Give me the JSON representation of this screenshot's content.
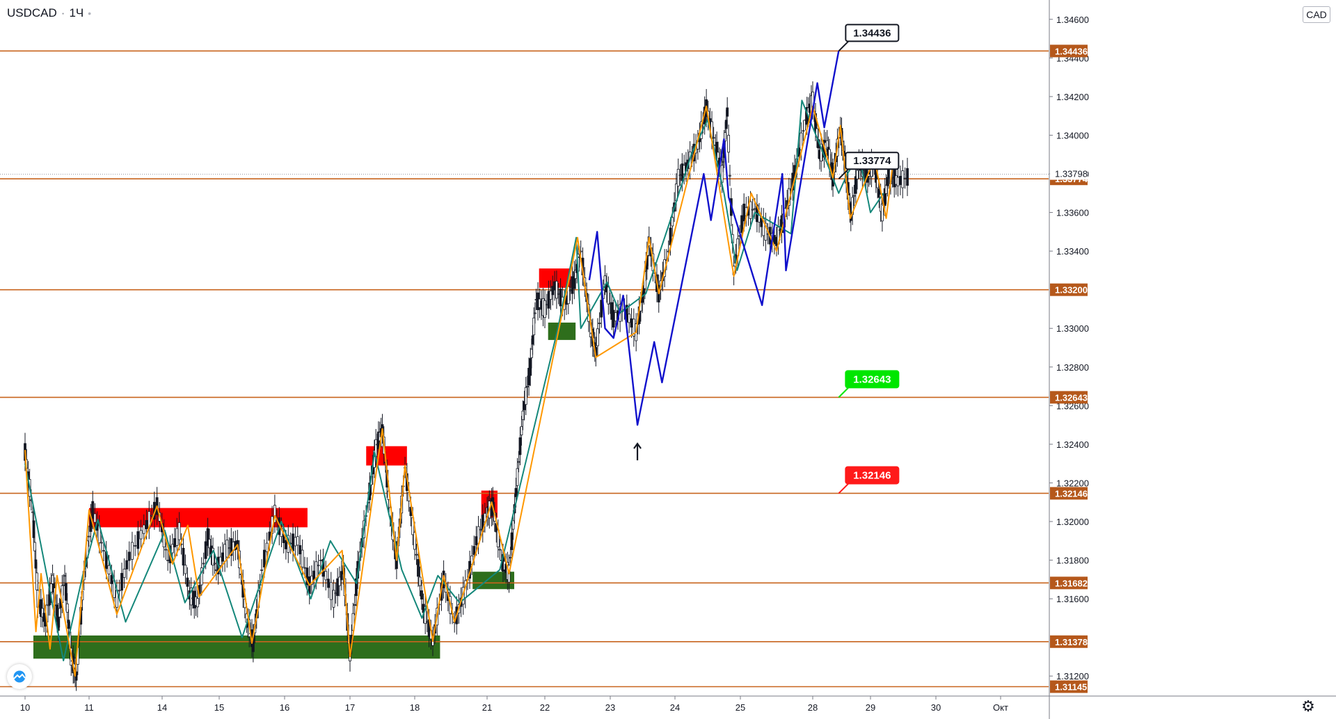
{
  "header": {
    "symbol": "USDCAD",
    "separator": "·",
    "interval": "1Ч",
    "status_dot": "•"
  },
  "price_axis": {
    "currency": "CAD"
  },
  "icons": {
    "logo": "tradingview-logo-icon",
    "settings": "gear-icon"
  },
  "colors": {
    "level_line": "#c8641e",
    "level_label_bg": "#b5581b",
    "resistance_zone": "#ff0000",
    "support_zone": "#2e6e1c",
    "zigzag_orange": "#ff9800",
    "zigzag_teal": "#14877a",
    "forecast": "#1111cc",
    "label_green": "#00e600",
    "label_red": "#ff1a1a",
    "candle": "#131722"
  },
  "chart_data": {
    "type": "candlestick",
    "instrument": "USDCAD",
    "interval": "1Ч",
    "ylim": [
      1.311,
      1.347
    ],
    "y_ticks": [
      {
        "value": 1.346,
        "label": "1.34600"
      },
      {
        "value": 1.344,
        "label": "1.34400"
      },
      {
        "value": 1.342,
        "label": "1.34200"
      },
      {
        "value": 1.34,
        "label": "1.34000"
      },
      {
        "value": 1.338,
        "label": "1.33800"
      },
      {
        "value": 1.336,
        "label": "1.33600"
      },
      {
        "value": 1.334,
        "label": "1.33400"
      },
      {
        "value": 1.33,
        "label": "1.33000"
      },
      {
        "value": 1.328,
        "label": "1.32800"
      },
      {
        "value": 1.326,
        "label": "1.32600"
      },
      {
        "value": 1.324,
        "label": "1.32400"
      },
      {
        "value": 1.322,
        "label": "1.32200"
      },
      {
        "value": 1.32,
        "label": "1.32000"
      },
      {
        "value": 1.318,
        "label": "1.31800"
      },
      {
        "value": 1.316,
        "label": "1.31600"
      },
      {
        "value": 1.312,
        "label": "1.31200"
      }
    ],
    "x_ticks": [
      {
        "day": 0,
        "label": "10"
      },
      {
        "day": 1,
        "label": "11"
      },
      {
        "day": 2,
        "label": "14"
      },
      {
        "day": 3,
        "label": "15"
      },
      {
        "day": 4,
        "label": "16"
      },
      {
        "day": 5,
        "label": "17"
      },
      {
        "day": 6,
        "label": "18"
      },
      {
        "day": 7,
        "label": "21"
      },
      {
        "day": 8,
        "label": "22"
      },
      {
        "day": 9,
        "label": "23"
      },
      {
        "day": 10,
        "label": "24"
      },
      {
        "day": 11,
        "label": "25"
      },
      {
        "day": 12,
        "label": "28"
      },
      {
        "day": 13,
        "label": "29"
      },
      {
        "day": 14,
        "label": "30"
      },
      {
        "day": 15,
        "label": "Окт"
      }
    ],
    "levels": [
      {
        "value": 1.34436,
        "label": "1.34436"
      },
      {
        "value": 1.33774,
        "label": "1.33774"
      },
      {
        "value": 1.332,
        "label": "1.33200"
      },
      {
        "value": 1.32643,
        "label": "1.32643"
      },
      {
        "value": 1.32146,
        "label": "1.32146"
      },
      {
        "value": 1.31682,
        "label": "1.31682"
      },
      {
        "value": 1.31378,
        "label": "1.31378"
      },
      {
        "value": 1.31145,
        "label": "1.31145"
      }
    ],
    "last_price": {
      "value": 1.33798,
      "label": "1.33798"
    },
    "zones": [
      {
        "kind": "resistance",
        "day_from": 1.0,
        "day_to": 4.35,
        "low": 1.3197,
        "high": 1.3207
      },
      {
        "kind": "resistance",
        "day_from": 5.25,
        "day_to": 5.88,
        "low": 1.3229,
        "high": 1.3239
      },
      {
        "kind": "resistance",
        "day_from": 6.92,
        "day_to": 7.18,
        "low": 1.3202,
        "high": 1.3216
      },
      {
        "kind": "resistance",
        "day_from": 7.9,
        "day_to": 8.4,
        "low": 1.3321,
        "high": 1.3331
      },
      {
        "kind": "support",
        "day_from": 0.13,
        "day_to": 6.35,
        "low": 1.3129,
        "high": 1.3141
      },
      {
        "kind": "support",
        "day_from": 6.8,
        "day_to": 7.47,
        "low": 1.3165,
        "high": 1.3174
      },
      {
        "kind": "support",
        "day_from": 8.05,
        "day_to": 8.47,
        "low": 1.3294,
        "high": 1.3303
      }
    ],
    "callouts": [
      {
        "text": "1.34436",
        "value": 1.34436,
        "day": 12.45,
        "style": "black"
      },
      {
        "text": "1.33774",
        "value": 1.33774,
        "day": 12.45,
        "style": "black"
      },
      {
        "text": "1.32643",
        "value": 1.32643,
        "day": 12.45,
        "style": "green"
      },
      {
        "text": "1.32146",
        "value": 1.32146,
        "day": 12.45,
        "style": "red"
      }
    ],
    "forecast_path": [
      [
        8.68,
        1.3325
      ],
      [
        8.8,
        1.335
      ],
      [
        8.92,
        1.33
      ],
      [
        9.05,
        1.3295
      ],
      [
        9.2,
        1.3317
      ],
      [
        9.42,
        1.325
      ],
      [
        9.68,
        1.3293
      ],
      [
        9.8,
        1.3272
      ],
      [
        10.44,
        1.338
      ],
      [
        10.55,
        1.3356
      ],
      [
        10.75,
        1.3398
      ],
      [
        10.82,
        1.3368
      ],
      [
        11.3,
        1.3312
      ],
      [
        11.58,
        1.338
      ],
      [
        11.63,
        1.333
      ],
      [
        12.08,
        1.3427
      ],
      [
        12.2,
        1.3404
      ],
      [
        12.45,
        1.34436
      ]
    ],
    "zigzag_orange": [
      [
        0.0,
        1.3237
      ],
      [
        0.17,
        1.3143
      ],
      [
        0.25,
        1.3173
      ],
      [
        0.39,
        1.3134
      ],
      [
        0.5,
        1.3172
      ],
      [
        0.78,
        1.312
      ],
      [
        1.0,
        1.3206
      ],
      [
        1.38,
        1.3152
      ],
      [
        1.93,
        1.3208
      ],
      [
        2.18,
        1.3178
      ],
      [
        2.45,
        1.3198
      ],
      [
        2.65,
        1.3161
      ],
      [
        3.28,
        1.3188
      ],
      [
        3.5,
        1.3137
      ],
      [
        3.85,
        1.3203
      ],
      [
        4.38,
        1.3167
      ],
      [
        4.88,
        1.3185
      ],
      [
        5.0,
        1.313
      ],
      [
        5.5,
        1.3248
      ],
      [
        5.72,
        1.318
      ],
      [
        5.85,
        1.3229
      ],
      [
        6.25,
        1.3138
      ],
      [
        6.4,
        1.3172
      ],
      [
        6.55,
        1.3148
      ],
      [
        7.08,
        1.321
      ],
      [
        7.38,
        1.3173
      ],
      [
        8.5,
        1.3347
      ],
      [
        8.78,
        1.3285
      ],
      [
        9.4,
        1.3298
      ],
      [
        9.6,
        1.3347
      ],
      [
        9.75,
        1.3318
      ],
      [
        10.48,
        1.3415
      ],
      [
        10.9,
        1.3327
      ],
      [
        11.15,
        1.337
      ],
      [
        11.5,
        1.334
      ],
      [
        12.0,
        1.3415
      ],
      [
        12.35,
        1.3378
      ],
      [
        12.48,
        1.3405
      ],
      [
        12.65,
        1.3357
      ],
      [
        13.06,
        1.3388
      ],
      [
        13.24,
        1.3357
      ],
      [
        13.33,
        1.3382
      ]
    ],
    "zigzag_teal": [
      [
        0.0,
        1.323
      ],
      [
        0.6,
        1.3128
      ],
      [
        0.9,
        1.3172
      ],
      [
        1.12,
        1.3201
      ],
      [
        1.5,
        1.3148
      ],
      [
        2.05,
        1.3195
      ],
      [
        2.4,
        1.3158
      ],
      [
        2.9,
        1.3185
      ],
      [
        3.35,
        1.314
      ],
      [
        3.95,
        1.32
      ],
      [
        4.4,
        1.316
      ],
      [
        4.7,
        1.319
      ],
      [
        5.1,
        1.3168
      ],
      [
        5.38,
        1.3236
      ],
      [
        5.8,
        1.3175
      ],
      [
        6.1,
        1.315
      ],
      [
        6.32,
        1.3172
      ],
      [
        6.62,
        1.3158
      ],
      [
        7.22,
        1.3175
      ],
      [
        8.2,
        1.33
      ],
      [
        8.48,
        1.3347
      ],
      [
        8.55,
        1.33
      ],
      [
        8.95,
        1.3324
      ],
      [
        9.15,
        1.3308
      ],
      [
        9.55,
        1.3318
      ],
      [
        9.9,
        1.3353
      ],
      [
        10.25,
        1.339
      ],
      [
        10.5,
        1.3408
      ],
      [
        10.75,
        1.337
      ],
      [
        10.95,
        1.333
      ],
      [
        11.2,
        1.336
      ],
      [
        11.7,
        1.3349
      ],
      [
        11.85,
        1.3418
      ],
      [
        12.15,
        1.3393
      ],
      [
        12.45,
        1.337
      ],
      [
        12.6,
        1.338
      ],
      [
        12.8,
        1.339
      ],
      [
        13.0,
        1.336
      ],
      [
        13.2,
        1.337
      ]
    ],
    "price_path": [
      [
        0.0,
        1.3236
      ],
      [
        0.12,
        1.3205
      ],
      [
        0.2,
        1.316
      ],
      [
        0.32,
        1.3148
      ],
      [
        0.43,
        1.317
      ],
      [
        0.52,
        1.3148
      ],
      [
        0.62,
        1.3172
      ],
      [
        0.72,
        1.313
      ],
      [
        0.8,
        1.312
      ],
      [
        0.92,
        1.3172
      ],
      [
        1.05,
        1.3206
      ],
      [
        1.2,
        1.3185
      ],
      [
        1.38,
        1.316
      ],
      [
        1.55,
        1.3182
      ],
      [
        1.75,
        1.3196
      ],
      [
        1.93,
        1.3208
      ],
      [
        2.1,
        1.318
      ],
      [
        2.3,
        1.3195
      ],
      [
        2.48,
        1.3162
      ],
      [
        2.62,
        1.3158
      ],
      [
        2.8,
        1.3192
      ],
      [
        2.95,
        1.3175
      ],
      [
        3.12,
        1.3186
      ],
      [
        3.28,
        1.3188
      ],
      [
        3.42,
        1.315
      ],
      [
        3.52,
        1.3137
      ],
      [
        3.65,
        1.3175
      ],
      [
        3.85,
        1.3204
      ],
      [
        4.02,
        1.3188
      ],
      [
        4.2,
        1.319
      ],
      [
        4.38,
        1.3167
      ],
      [
        4.55,
        1.318
      ],
      [
        4.75,
        1.316
      ],
      [
        4.9,
        1.3175
      ],
      [
        5.0,
        1.313
      ],
      [
        5.12,
        1.3175
      ],
      [
        5.28,
        1.321
      ],
      [
        5.4,
        1.3238
      ],
      [
        5.5,
        1.3248
      ],
      [
        5.62,
        1.3205
      ],
      [
        5.72,
        1.318
      ],
      [
        5.85,
        1.3228
      ],
      [
        6.0,
        1.319
      ],
      [
        6.12,
        1.3155
      ],
      [
        6.25,
        1.3138
      ],
      [
        6.4,
        1.317
      ],
      [
        6.55,
        1.3148
      ],
      [
        6.7,
        1.3165
      ],
      [
        6.85,
        1.319
      ],
      [
        7.0,
        1.3205
      ],
      [
        7.1,
        1.3208
      ],
      [
        7.25,
        1.318
      ],
      [
        7.38,
        1.3173
      ],
      [
        7.5,
        1.3215
      ],
      [
        7.62,
        1.3255
      ],
      [
        7.75,
        1.328
      ],
      [
        7.85,
        1.3315
      ],
      [
        8.0,
        1.331
      ],
      [
        8.15,
        1.3322
      ],
      [
        8.3,
        1.3312
      ],
      [
        8.45,
        1.3325
      ],
      [
        8.55,
        1.334
      ],
      [
        8.7,
        1.33
      ],
      [
        8.78,
        1.3288
      ],
      [
        8.92,
        1.3325
      ],
      [
        9.05,
        1.3305
      ],
      [
        9.22,
        1.331
      ],
      [
        9.4,
        1.3298
      ],
      [
        9.52,
        1.332
      ],
      [
        9.6,
        1.3345
      ],
      [
        9.75,
        1.3318
      ],
      [
        9.9,
        1.334
      ],
      [
        10.05,
        1.3378
      ],
      [
        10.2,
        1.3385
      ],
      [
        10.35,
        1.3395
      ],
      [
        10.48,
        1.3414
      ],
      [
        10.62,
        1.3395
      ],
      [
        10.72,
        1.338
      ],
      [
        10.8,
        1.3412
      ],
      [
        10.9,
        1.333
      ],
      [
        11.05,
        1.336
      ],
      [
        11.2,
        1.3362
      ],
      [
        11.35,
        1.335
      ],
      [
        11.5,
        1.3345
      ],
      [
        11.62,
        1.336
      ],
      [
        11.75,
        1.338
      ],
      [
        11.9,
        1.3408
      ],
      [
        12.0,
        1.3418
      ],
      [
        12.12,
        1.339
      ],
      [
        12.25,
        1.3395
      ],
      [
        12.35,
        1.3378
      ],
      [
        12.48,
        1.3404
      ],
      [
        12.58,
        1.338
      ],
      [
        12.66,
        1.3358
      ],
      [
        12.8,
        1.3385
      ],
      [
        12.95,
        1.338
      ],
      [
        13.06,
        1.3385
      ],
      [
        13.18,
        1.336
      ],
      [
        13.28,
        1.338
      ],
      [
        13.42,
        1.3376
      ],
      [
        13.6,
        1.3379
      ]
    ],
    "arrow_marker": {
      "day": 9.42,
      "value": 1.3236,
      "direction": "up"
    }
  }
}
